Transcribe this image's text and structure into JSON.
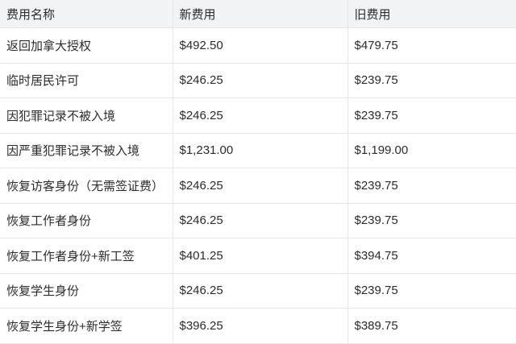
{
  "table": {
    "headers": [
      "费用名称",
      "新费用",
      "旧费用"
    ],
    "rows": [
      [
        "返回加拿大授权",
        "$492.50",
        "$479.75"
      ],
      [
        "临时居民许可",
        "$246.25",
        "$239.75"
      ],
      [
        "因犯罪记录不被入境",
        "$246.25",
        "$239.75"
      ],
      [
        "因严重犯罪记录不被入境",
        "$1,231.00",
        "$1,199.00"
      ],
      [
        "恢复访客身份（无需签证费）",
        "$246.25",
        "$239.75"
      ],
      [
        "恢复工作者身份",
        "$246.25",
        "$239.75"
      ],
      [
        "恢复工作者身份+新工签",
        "$401.25",
        "$394.75"
      ],
      [
        "恢复学生身份",
        "$246.25",
        "$239.75"
      ],
      [
        "恢复学生身份+新学签",
        "$396.25",
        "$389.75"
      ]
    ]
  }
}
